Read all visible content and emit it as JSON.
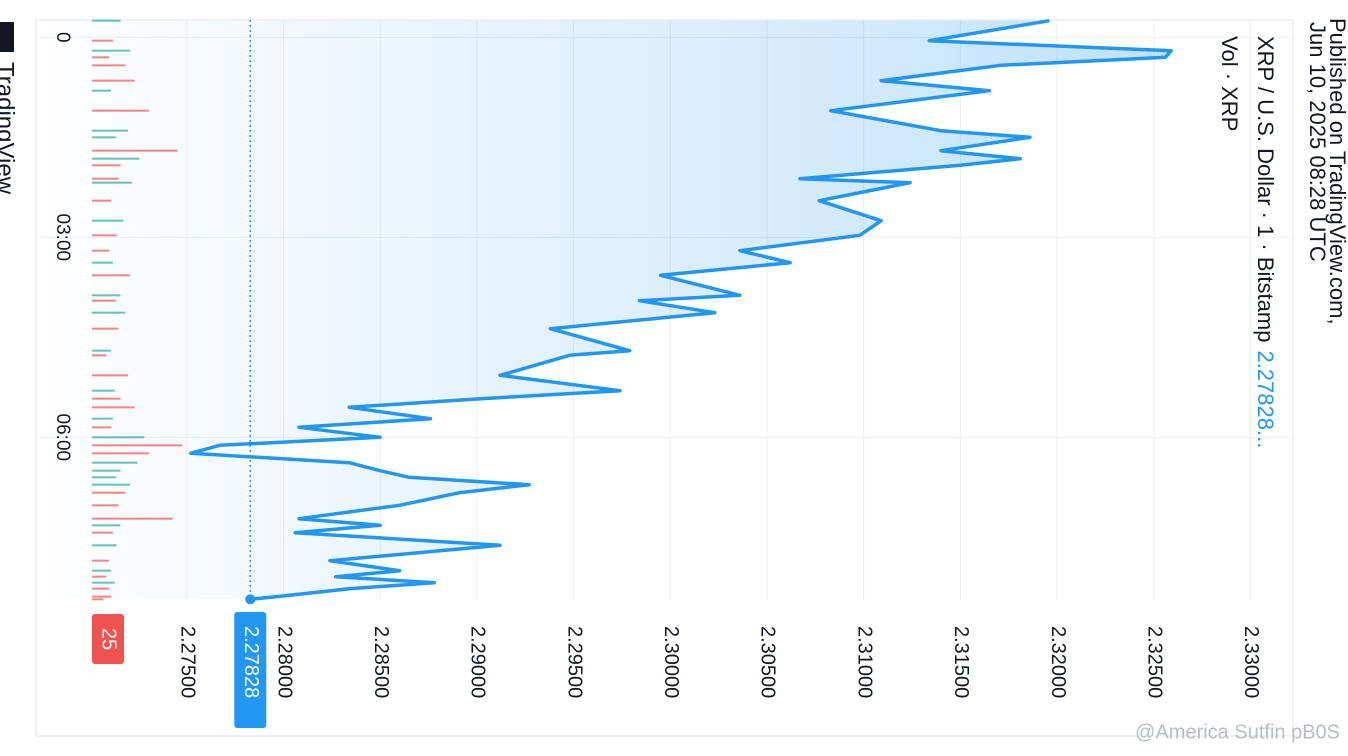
{
  "chart_data": {
    "type": "area",
    "published": "Published on TradingView.com,",
    "date": "Jun 10, 2025 08:28 UTC",
    "brand": "TradingView",
    "watermark": "@America Sutfin pB0S",
    "legend_price": "2.27828...",
    "last_price": 2.27828,
    "volume_badge": 25,
    "x": [
      -0.25,
      0.05,
      0.2,
      0.3,
      0.42,
      0.65,
      0.8,
      1.1,
      1.4,
      1.5,
      1.7,
      1.82,
      1.92,
      2.12,
      2.18,
      2.45,
      2.75,
      2.97,
      3.2,
      3.38,
      3.57,
      3.87,
      3.95,
      4.13,
      4.37,
      4.7,
      4.77,
      5.07,
      5.3,
      5.42,
      5.55,
      5.72,
      5.85,
      6.0,
      6.12,
      6.24,
      6.38,
      6.5,
      6.6,
      6.71,
      6.83,
      7.02,
      7.22,
      7.32,
      7.43,
      7.62,
      7.85,
      8.0,
      8.09,
      8.18,
      8.27,
      8.39,
      8.43
    ],
    "series": [
      {
        "name": "XRP / U.S. Dollar · 1 · Bitstamp",
        "color": "#2196f3",
        "values": [
          2.3196,
          2.3134,
          2.3259,
          2.3256,
          2.3171,
          2.3109,
          2.3165,
          2.3083,
          2.314,
          2.3186,
          2.314,
          2.3181,
          2.315,
          2.3067,
          2.3124,
          2.3077,
          2.3109,
          2.3098,
          2.3036,
          2.3062,
          2.2995,
          2.3036,
          2.2984,
          2.3023,
          2.2938,
          2.2979,
          2.2948,
          2.2912,
          2.2974,
          2.2902,
          2.2834,
          2.2876,
          2.2808,
          2.285,
          2.2767,
          2.2752,
          2.2834,
          2.285,
          2.2865,
          2.2927,
          2.2891,
          2.286,
          2.2808,
          2.285,
          2.2806,
          2.2912,
          2.2824,
          2.286,
          2.2827,
          2.2878,
          2.2834,
          2.2796,
          2.27828
        ]
      },
      {
        "name": "Vol · XRP",
        "up_color": "#26a69a",
        "down_color": "#ef5350",
        "values": [
          30,
          22,
          40,
          18,
          35,
          45,
          20,
          60,
          38,
          25,
          90,
          50,
          30,
          28,
          42,
          20,
          33,
          26,
          18,
          22,
          40,
          30,
          25,
          35,
          28,
          20,
          15,
          38,
          24,
          30,
          45,
          22,
          20,
          55,
          95,
          60,
          48,
          30,
          25,
          40,
          35,
          28,
          85,
          30,
          22,
          26,
          18,
          20,
          15,
          24,
          18,
          20,
          12
        ]
      }
    ],
    "xlim": [
      -0.26,
      8.44
    ],
    "xticks": [
      0,
      {
        "value": 3,
        "label": "03:00"
      },
      {
        "value": 6,
        "label": "06:00"
      }
    ],
    "ylim": [
      2.2672,
      2.3322
    ],
    "yticks": [
      {
        "value": 2.275,
        "label": "2.27500"
      },
      {
        "value": 2.28,
        "label": "2.28000"
      },
      {
        "value": 2.285,
        "label": "2.28500"
      },
      {
        "value": 2.29,
        "label": "2.29000"
      },
      {
        "value": 2.295,
        "label": "2.29500"
      },
      {
        "value": 2.3,
        "label": "2.30000"
      },
      {
        "value": 2.305,
        "label": "2.30500"
      },
      {
        "value": 2.31,
        "label": "2.31000"
      },
      {
        "value": 2.315,
        "label": "2.31500"
      },
      {
        "value": 2.32,
        "label": "2.32000"
      },
      {
        "value": 2.325,
        "label": "2.32500"
      },
      {
        "value": 2.33,
        "label": "2.33000"
      }
    ],
    "volume_lim": [
      0,
      100
    ],
    "grid": true
  }
}
